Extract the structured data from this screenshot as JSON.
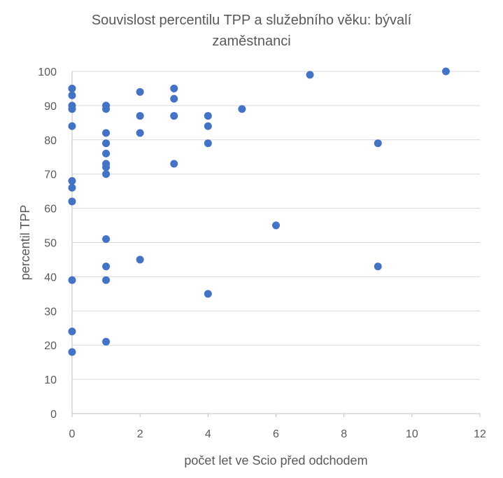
{
  "chart_data": {
    "type": "scatter",
    "title_line1": "Souvislost percentilu TPP a služebního věku: bývalí",
    "title_line2": "zaměstnanci",
    "xlabel": "počet let ve Scio před odchodem",
    "ylabel": "percentil TPP",
    "xlim": [
      0,
      12
    ],
    "ylim": [
      0,
      100
    ],
    "x_ticks": [
      0,
      2,
      4,
      6,
      8,
      10,
      12
    ],
    "y_ticks": [
      0,
      10,
      20,
      30,
      40,
      50,
      60,
      70,
      80,
      90,
      100
    ],
    "grid": "horizontal",
    "marker_color": "#4472C4",
    "points": [
      {
        "x": 0,
        "y": 95
      },
      {
        "x": 0,
        "y": 93
      },
      {
        "x": 0,
        "y": 90
      },
      {
        "x": 0,
        "y": 89
      },
      {
        "x": 0,
        "y": 84
      },
      {
        "x": 0,
        "y": 68
      },
      {
        "x": 0,
        "y": 66
      },
      {
        "x": 0,
        "y": 62
      },
      {
        "x": 0,
        "y": 39
      },
      {
        "x": 0,
        "y": 24
      },
      {
        "x": 0,
        "y": 18
      },
      {
        "x": 1,
        "y": 90
      },
      {
        "x": 1,
        "y": 89
      },
      {
        "x": 1,
        "y": 82
      },
      {
        "x": 1,
        "y": 79
      },
      {
        "x": 1,
        "y": 76
      },
      {
        "x": 1,
        "y": 73
      },
      {
        "x": 1,
        "y": 72
      },
      {
        "x": 1,
        "y": 70
      },
      {
        "x": 1,
        "y": 51
      },
      {
        "x": 1,
        "y": 43
      },
      {
        "x": 1,
        "y": 39
      },
      {
        "x": 1,
        "y": 21
      },
      {
        "x": 2,
        "y": 94
      },
      {
        "x": 2,
        "y": 87
      },
      {
        "x": 2,
        "y": 82
      },
      {
        "x": 2,
        "y": 45
      },
      {
        "x": 3,
        "y": 95
      },
      {
        "x": 3,
        "y": 92
      },
      {
        "x": 3,
        "y": 87
      },
      {
        "x": 3,
        "y": 73
      },
      {
        "x": 4,
        "y": 87
      },
      {
        "x": 4,
        "y": 84
      },
      {
        "x": 4,
        "y": 79
      },
      {
        "x": 4,
        "y": 35
      },
      {
        "x": 5,
        "y": 89
      },
      {
        "x": 6,
        "y": 55
      },
      {
        "x": 7,
        "y": 99
      },
      {
        "x": 9,
        "y": 79
      },
      {
        "x": 9,
        "y": 43
      },
      {
        "x": 11,
        "y": 100
      }
    ]
  }
}
